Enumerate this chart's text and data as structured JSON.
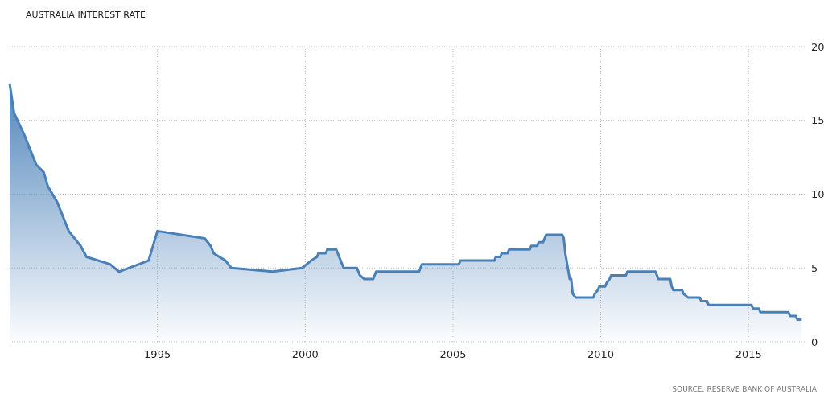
{
  "chart_data": {
    "type": "area",
    "title": "AUSTRALIA INTEREST RATE",
    "annotations": [
      "SOURCE: RESERVE BANK OF AUSTRALIA"
    ],
    "xlim": [
      1990,
      2016.9
    ],
    "xticks": [
      1995,
      2000,
      2005,
      2010,
      2015
    ],
    "ylim": [
      0,
      20
    ],
    "yticks": [
      0,
      5,
      10,
      15,
      20
    ],
    "grid": true,
    "line_style": "solid",
    "series": [
      {
        "color": "#4a80b8",
        "x": [
          1990.0,
          1990.15,
          1990.5,
          1990.9,
          1991.15,
          1991.3,
          1991.6,
          1992.0,
          1992.4,
          1992.6,
          1993.4,
          1993.7,
          1994.7,
          1995.0,
          1996.6,
          1996.8,
          1996.9,
          1997.3,
          1997.5,
          1998.9,
          1999.9,
          2000.2,
          2000.4,
          2000.45,
          2000.7,
          2000.75,
          2001.05,
          2001.1,
          2001.2,
          2001.3,
          2001.75,
          2001.85,
          2002.0,
          2002.3,
          2002.4,
          2003.85,
          2003.95,
          2005.2,
          2005.25,
          2006.4,
          2006.45,
          2006.6,
          2006.65,
          2006.85,
          2006.9,
          2007.6,
          2007.65,
          2007.85,
          2007.9,
          2008.05,
          2008.1,
          2008.15,
          2008.7,
          2008.75,
          2008.8,
          2008.95,
          2009.0,
          2009.05,
          2009.15,
          2009.75,
          2009.8,
          2009.9,
          2009.95,
          2010.15,
          2010.2,
          2010.3,
          2010.35,
          2010.85,
          2010.9,
          2011.85,
          2011.9,
          2011.95,
          2012.35,
          2012.4,
          2012.45,
          2012.75,
          2012.8,
          2012.95,
          2013.35,
          2013.4,
          2013.6,
          2013.65,
          2015.1,
          2015.15,
          2015.35,
          2015.4,
          2016.35,
          2016.4,
          2016.6,
          2016.65,
          2016.8
        ],
        "values": [
          17.5,
          15.5,
          14.0,
          12.0,
          11.5,
          10.5,
          9.5,
          7.5,
          6.5,
          5.75,
          5.25,
          4.75,
          5.5,
          7.5,
          7.0,
          6.5,
          6.0,
          5.5,
          5.0,
          4.75,
          5.0,
          5.5,
          5.75,
          6.0,
          6.0,
          6.25,
          6.25,
          6.0,
          5.5,
          5.0,
          5.0,
          4.5,
          4.25,
          4.25,
          4.75,
          4.75,
          5.25,
          5.25,
          5.5,
          5.5,
          5.75,
          5.75,
          6.0,
          6.0,
          6.25,
          6.25,
          6.5,
          6.5,
          6.75,
          6.75,
          7.0,
          7.25,
          7.25,
          7.0,
          6.0,
          4.25,
          4.25,
          3.25,
          3.0,
          3.0,
          3.25,
          3.5,
          3.75,
          3.75,
          4.0,
          4.25,
          4.5,
          4.5,
          4.75,
          4.75,
          4.5,
          4.25,
          4.25,
          3.75,
          3.5,
          3.5,
          3.25,
          3.0,
          3.0,
          2.75,
          2.75,
          2.5,
          2.5,
          2.25,
          2.25,
          2.0,
          2.0,
          1.75,
          1.75,
          1.5,
          1.5
        ]
      }
    ]
  }
}
